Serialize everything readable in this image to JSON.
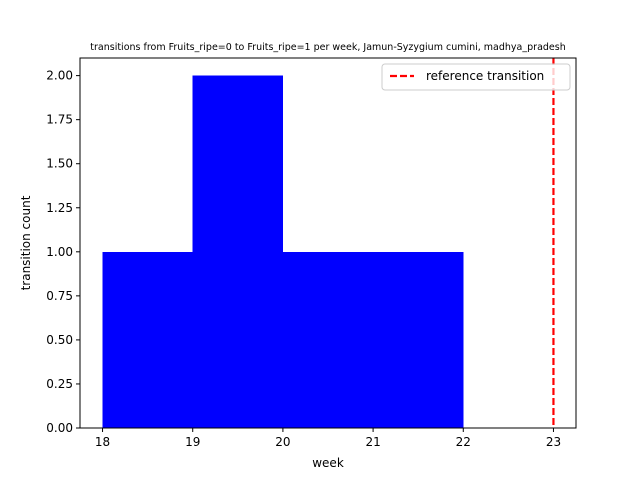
{
  "chart_data": {
    "type": "bar",
    "title": "transitions from Fruits_ripe=0 to Fruits_ripe=1 per week, Jamun-Syzygium cumini, madhya_pradesh",
    "xlabel": "week",
    "ylabel": "transition count",
    "xlim": [
      17.75,
      23.25
    ],
    "ylim": [
      0,
      2.1
    ],
    "xticks": [
      "18",
      "19",
      "20",
      "21",
      "22",
      "23"
    ],
    "yticks": [
      "0.00",
      "0.25",
      "0.50",
      "0.75",
      "1.00",
      "1.25",
      "1.50",
      "1.75",
      "2.00"
    ],
    "bars": [
      {
        "x0": 18,
        "x1": 19,
        "value": 1
      },
      {
        "x0": 19,
        "x1": 20,
        "value": 2
      },
      {
        "x0": 20,
        "x1": 21,
        "value": 1
      },
      {
        "x0": 21,
        "x1": 22,
        "value": 1
      }
    ],
    "reference_line": {
      "x": 23,
      "label": "reference transition",
      "style": "dashed"
    },
    "legend": {
      "position": "top-right",
      "entries": [
        "reference transition"
      ]
    },
    "grid": false,
    "colors": {
      "bars": "#0000ff",
      "reference": "#ff0000"
    }
  }
}
